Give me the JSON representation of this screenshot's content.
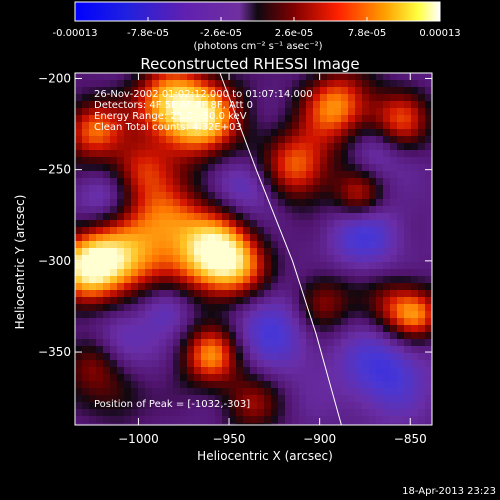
{
  "colorbar": {
    "tick_labels": [
      "-0.00013",
      "-7.8e-05",
      "-2.6e-05",
      "2.6e-05",
      "7.8e-05",
      "0.00013"
    ],
    "unit_label": "(photons cm⁻² s⁻¹ asec⁻²)",
    "range": [
      -0.00013,
      0.00013
    ]
  },
  "chart_data": {
    "type": "heatmap",
    "title": "Reconstructed RHESSI Image",
    "xlabel": "Heliocentric X (arcsec)",
    "ylabel": "Heliocentric Y (arcsec)",
    "xlim": [
      -1035,
      -838
    ],
    "ylim": [
      -390,
      -197
    ],
    "xticks": [
      -1000,
      -950,
      -900,
      -850
    ],
    "yticks": [
      -200,
      -250,
      -300,
      -350
    ],
    "info_lines": [
      "26-Nov-2002 01:02:12.000 to 01:07:14.000",
      "Detectors: 4F 5F 6F 7F 8F, Att 0",
      "Energy Range: 25.0 - 50.0 keV",
      "Clean     Total counts: 4.32E+03"
    ],
    "annotation": "Position of Peak = [-1032,-303]",
    "peak": [
      -1032,
      -303
    ],
    "limb_line": [
      [
        -955,
        -197
      ],
      [
        -935,
        -250
      ],
      [
        -915,
        -300
      ],
      [
        -902,
        -340
      ],
      [
        -888,
        -390
      ]
    ],
    "features": [
      {
        "x": -1028,
        "y": -302,
        "v": 1.0,
        "s": 14
      },
      {
        "x": -1005,
        "y": -300,
        "v": 0.7,
        "s": 16
      },
      {
        "x": -960,
        "y": -295,
        "v": 0.95,
        "s": 16
      },
      {
        "x": -945,
        "y": -305,
        "v": 0.6,
        "s": 14
      },
      {
        "x": -985,
        "y": -275,
        "v": 0.6,
        "s": 14
      },
      {
        "x": -965,
        "y": -222,
        "v": 0.95,
        "s": 16
      },
      {
        "x": -985,
        "y": -212,
        "v": 0.7,
        "s": 14
      },
      {
        "x": -1025,
        "y": -228,
        "v": 0.75,
        "s": 12
      },
      {
        "x": -1000,
        "y": -250,
        "v": 0.55,
        "s": 12
      },
      {
        "x": -960,
        "y": -352,
        "v": 0.8,
        "s": 12
      },
      {
        "x": -890,
        "y": -215,
        "v": 0.8,
        "s": 14
      },
      {
        "x": -912,
        "y": -248,
        "v": 0.75,
        "s": 14
      },
      {
        "x": -878,
        "y": -265,
        "v": 0.6,
        "s": 10
      },
      {
        "x": -855,
        "y": -223,
        "v": 0.6,
        "s": 12
      },
      {
        "x": -900,
        "y": -323,
        "v": 0.6,
        "s": 12
      },
      {
        "x": -858,
        "y": -325,
        "v": 0.55,
        "s": 12
      },
      {
        "x": -845,
        "y": -330,
        "v": 0.55,
        "s": 10
      },
      {
        "x": -938,
        "y": -378,
        "v": 0.45,
        "s": 12
      },
      {
        "x": -1025,
        "y": -355,
        "v": 0.5,
        "s": 12
      },
      {
        "x": -1010,
        "y": -375,
        "v": 0.3,
        "s": 12
      },
      {
        "x": -985,
        "y": -325,
        "v": -0.35,
        "s": 10
      },
      {
        "x": -925,
        "y": -335,
        "v": -0.45,
        "s": 18
      },
      {
        "x": -875,
        "y": -285,
        "v": -0.45,
        "s": 14
      },
      {
        "x": -865,
        "y": -360,
        "v": -0.5,
        "s": 16
      },
      {
        "x": -1010,
        "y": -345,
        "v": -0.4,
        "s": 12
      },
      {
        "x": -940,
        "y": -260,
        "v": -0.35,
        "s": 12
      },
      {
        "x": -870,
        "y": -240,
        "v": -0.3,
        "s": 10
      },
      {
        "x": -1020,
        "y": -265,
        "v": -0.3,
        "s": 10
      }
    ]
  },
  "footer": {
    "timestamp": "18-Apr-2013 23:23"
  }
}
